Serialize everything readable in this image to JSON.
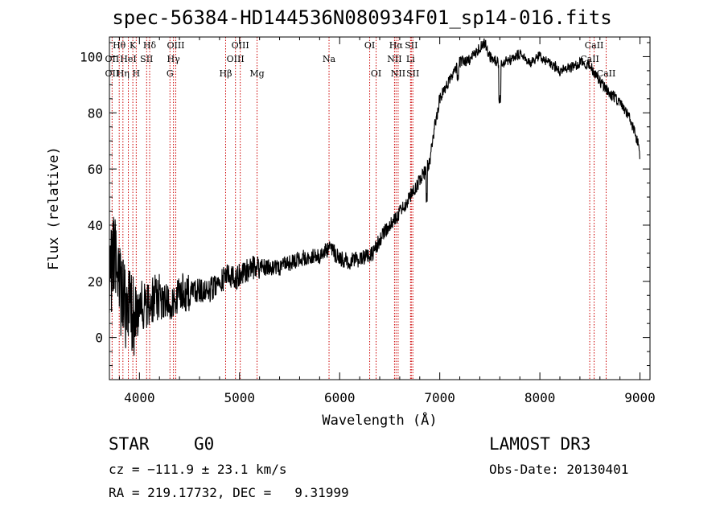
{
  "title": "spec-56384-HD144536N080934F01_sp14-016.fits",
  "footer": {
    "object_class": "STAR",
    "subclass": "G0",
    "survey": "LAMOST DR3",
    "cz": "cz = −111.9 ± 23.1 km/s",
    "obs_date": "Obs-Date: 20130401",
    "coords": "RA = 219.17732, DEC =   9.31999"
  },
  "colors": {
    "line_markers": "#cc0000",
    "spectrum": "#000000"
  },
  "chart_data": {
    "type": "line",
    "title": "spec-56384-HD144536N080934F01_sp14-016.fits",
    "xlabel": "Wavelength (Å)",
    "ylabel": "Flux (relative)",
    "xlim": [
      3700,
      9100
    ],
    "ylim": [
      -15,
      107
    ],
    "xticks": [
      4000,
      5000,
      6000,
      7000,
      8000,
      9000
    ],
    "yticks": [
      0,
      20,
      40,
      60,
      80,
      100
    ],
    "x_tick_labels": [
      "4000",
      "5000",
      "6000",
      "7000",
      "8000",
      "9000"
    ],
    "y_tick_labels": [
      "0",
      "20",
      "40",
      "60",
      "80",
      "100"
    ],
    "series": [
      {
        "name": "flux",
        "x": [
          3700,
          3760,
          3820,
          3880,
          3940,
          4000,
          4060,
          4120,
          4180,
          4240,
          4300,
          4360,
          4420,
          4500,
          4600,
          4700,
          4800,
          4860,
          4950,
          5050,
          5150,
          5250,
          5400,
          5600,
          5800,
          5900,
          6000,
          6100,
          6200,
          6300,
          6350,
          6450,
          6550,
          6650,
          6750,
          6800,
          6870,
          6900,
          6950,
          7000,
          7100,
          7200,
          7300,
          7400,
          7450,
          7500,
          7600,
          7700,
          7800,
          7900,
          8000,
          8100,
          8200,
          8300,
          8400,
          8500,
          8600,
          8700,
          8800,
          8900,
          9000
        ],
        "y": [
          22,
          30,
          15,
          10,
          8,
          10,
          12,
          13,
          12,
          14,
          13,
          12,
          16,
          16,
          17,
          17,
          19,
          22,
          21,
          23,
          25,
          25,
          25,
          28,
          29,
          32,
          28,
          27,
          28,
          29,
          31,
          38,
          42,
          47,
          53,
          56,
          60,
          63,
          75,
          85,
          92,
          98,
          99,
          103,
          105,
          100,
          97,
          99,
          101,
          98,
          100,
          98,
          95,
          96,
          98,
          97,
          91,
          87,
          84,
          78,
          67
        ]
      }
    ],
    "annotations": [
      {
        "label": "Hθ",
        "x": 3798,
        "row": 0
      },
      {
        "label": "OII",
        "x": 3727,
        "row": 1
      },
      {
        "label": "OII",
        "x": 3727,
        "row": 2
      },
      {
        "label": "Hη",
        "x": 3835,
        "row": 2
      },
      {
        "label": "K",
        "x": 3934,
        "row": 0
      },
      {
        "label": "HeI",
        "x": 3889,
        "row": 1
      },
      {
        "label": "H",
        "x": 3968,
        "row": 2
      },
      {
        "label": "Hδ",
        "x": 4102,
        "row": 0
      },
      {
        "label": "SII",
        "x": 4072,
        "row": 1
      },
      {
        "label": "OIII",
        "x": 4363,
        "row": 0
      },
      {
        "label": "Hγ",
        "x": 4340,
        "row": 1
      },
      {
        "label": "G",
        "x": 4305,
        "row": 2
      },
      {
        "label": "Hβ",
        "x": 4861,
        "row": 2
      },
      {
        "label": "OIII",
        "x": 5007,
        "row": 0
      },
      {
        "label": "OIII",
        "x": 4959,
        "row": 1
      },
      {
        "label": "Mg",
        "x": 5175,
        "row": 2
      },
      {
        "label": "Na",
        "x": 5894,
        "row": 1
      },
      {
        "label": "OI",
        "x": 6300,
        "row": 0
      },
      {
        "label": "OI",
        "x": 6364,
        "row": 2
      },
      {
        "label": "Hα",
        "x": 6563,
        "row": 0
      },
      {
        "label": "SII",
        "x": 6716,
        "row": 0
      },
      {
        "label": "NII",
        "x": 6548,
        "row": 1
      },
      {
        "label": "Li",
        "x": 6708,
        "row": 1
      },
      {
        "label": "NII",
        "x": 6584,
        "row": 2
      },
      {
        "label": "SII",
        "x": 6731,
        "row": 2
      },
      {
        "label": "CaII",
        "x": 8542,
        "row": 0
      },
      {
        "label": "CaII",
        "x": 8498,
        "row": 1
      },
      {
        "label": "CaII",
        "x": 8662,
        "row": 2
      }
    ]
  }
}
